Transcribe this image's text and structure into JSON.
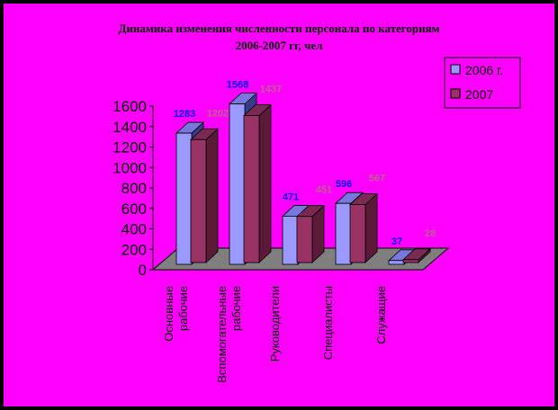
{
  "colors": {
    "background": "#ff00ff",
    "frame": "#000000",
    "floor": "#7f7f7f",
    "series1_front": "#9999ff",
    "series1_side": "#3a3a8a",
    "series1_top": "#7777dd",
    "series2_front": "#993366",
    "series2_side": "#5a1a38",
    "series2_top": "#7a2a55",
    "label1": "#0000ff",
    "label2": "#c06090"
  },
  "chart_data": {
    "type": "bar",
    "title": "Динамика изменения численности  персонала по категориям",
    "subtitle": "2006-2007 гг, чел",
    "categories": [
      "Основные рабочие",
      "Вспомогательные рабочие",
      "Руководители",
      "Специалисты",
      "Служащие"
    ],
    "category_lines": [
      [
        "Основные",
        "рабочие"
      ],
      [
        "Вспомогательные",
        "рабочие"
      ],
      [
        "Руководители"
      ],
      [
        "Специалисты"
      ],
      [
        "Служащие"
      ]
    ],
    "series": [
      {
        "name": "2006 г.",
        "values": [
          1283,
          1568,
          471,
          596,
          37
        ]
      },
      {
        "name": "2007",
        "values": [
          1202,
          1437,
          451,
          567,
          28
        ]
      }
    ],
    "ylim": [
      0,
      1600
    ],
    "yticks": [
      "0",
      "200",
      "400",
      "600",
      "800",
      "1000",
      "1200",
      "1400",
      "1600"
    ],
    "legend_position": "top-right",
    "grid": false
  }
}
